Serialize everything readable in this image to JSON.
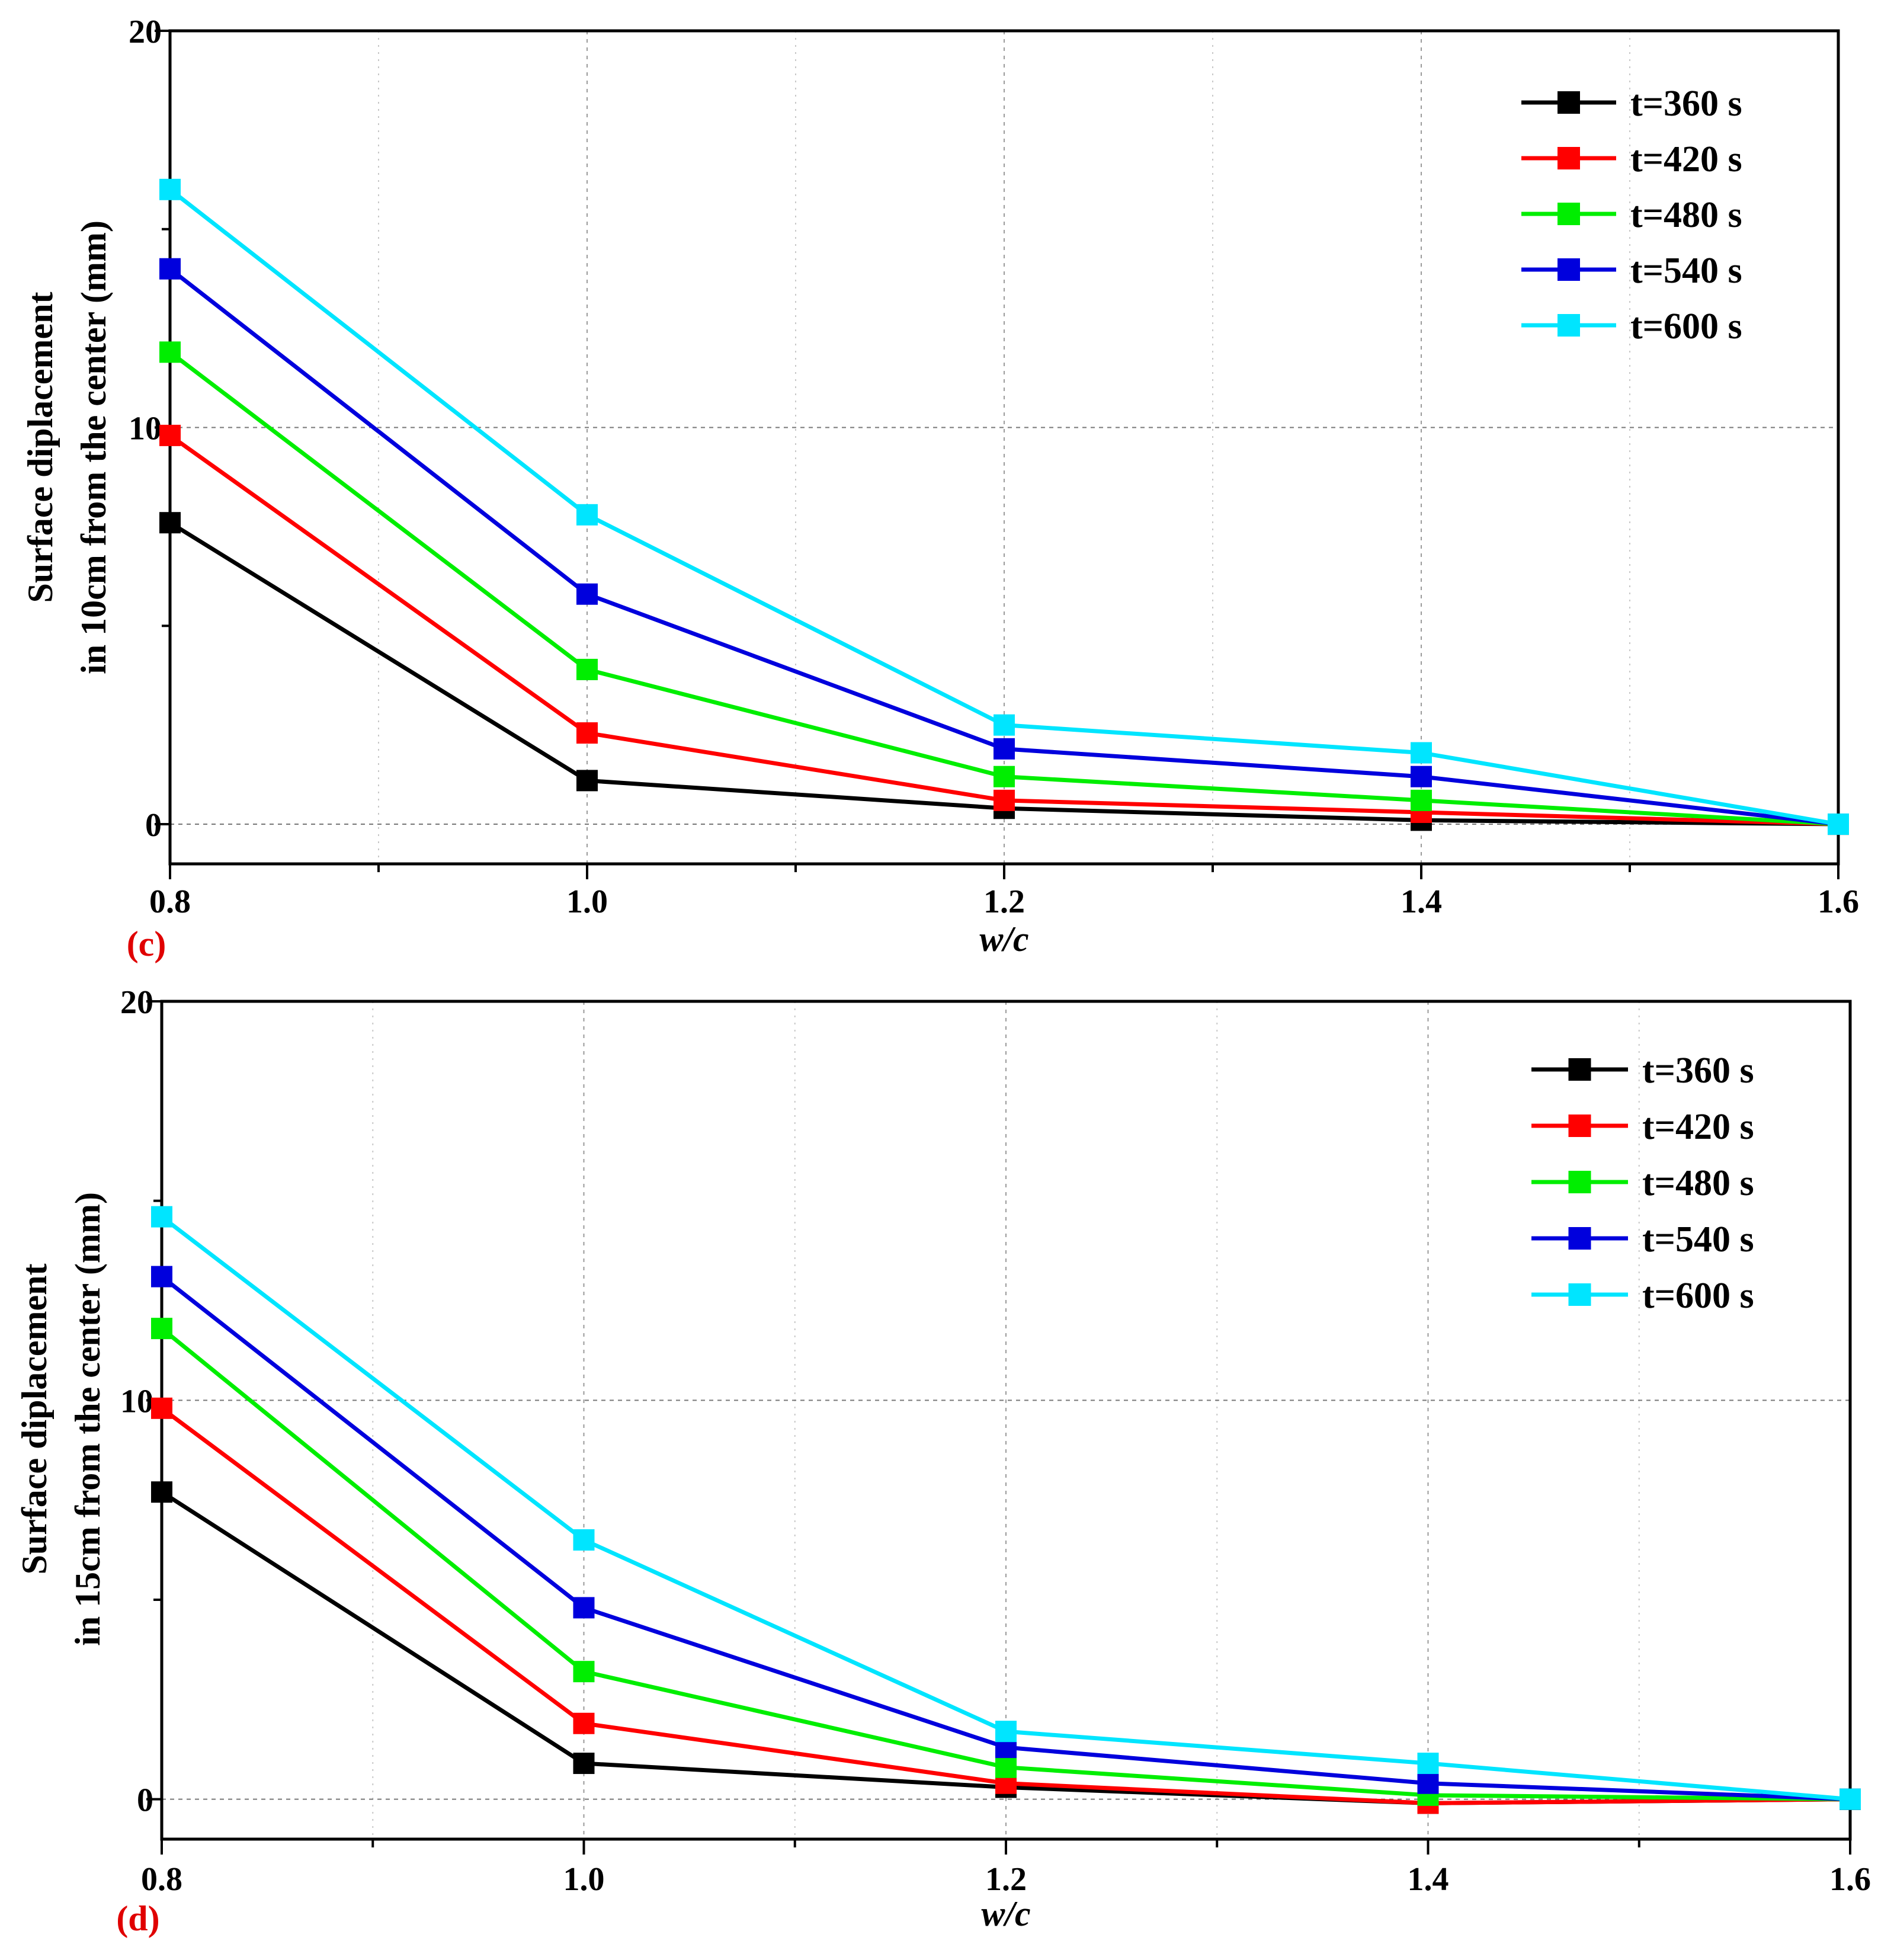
{
  "chart_data": [
    {
      "type": "line",
      "panel_label": "(c)",
      "x": [
        0.8,
        1.0,
        1.2,
        1.4,
        1.6
      ],
      "x_tick_labels": [
        "0.8",
        "1.0",
        "1.2",
        "1.4",
        "1.6"
      ],
      "y_tick_labels": [
        "0",
        "10",
        "20"
      ],
      "xlabel": "w/c",
      "ylabel_lines": [
        "Surface diplacement",
        "in 10cm from the center (mm)"
      ],
      "xlim": [
        0.8,
        1.6
      ],
      "ylim": [
        -1,
        20
      ],
      "grid": true,
      "legend_position": "top-right",
      "series": [
        {
          "name": "t=360 s",
          "color": "#000000",
          "values": [
            7.6,
            1.1,
            0.4,
            0.1,
            0.0
          ]
        },
        {
          "name": "t=420 s",
          "color": "#ff0000",
          "values": [
            9.8,
            2.3,
            0.6,
            0.3,
            0.0
          ]
        },
        {
          "name": "t=480 s",
          "color": "#00ee00",
          "values": [
            11.9,
            3.9,
            1.2,
            0.6,
            0.0
          ]
        },
        {
          "name": "t=540 s",
          "color": "#0000dd",
          "values": [
            14.0,
            5.8,
            1.9,
            1.2,
            0.0
          ]
        },
        {
          "name": "t=600 s",
          "color": "#00e5ff",
          "values": [
            16.0,
            7.8,
            2.5,
            1.8,
            0.0
          ]
        }
      ]
    },
    {
      "type": "line",
      "panel_label": "(d)",
      "x": [
        0.8,
        1.0,
        1.2,
        1.4,
        1.6
      ],
      "x_tick_labels": [
        "0.8",
        "1.0",
        "1.2",
        "1.4",
        "1.6"
      ],
      "y_tick_labels": [
        "0",
        "10",
        "20"
      ],
      "xlabel": "w/c",
      "ylabel_lines": [
        "Surface diplacement",
        "in 15cm from the center (mm)"
      ],
      "xlim": [
        0.8,
        1.6
      ],
      "ylim": [
        -1,
        20
      ],
      "grid": true,
      "legend_position": "top-right",
      "series": [
        {
          "name": "t=360 s",
          "color": "#000000",
          "values": [
            7.7,
            0.9,
            0.3,
            -0.1,
            0.0
          ]
        },
        {
          "name": "t=420 s",
          "color": "#ff0000",
          "values": [
            9.8,
            1.9,
            0.4,
            -0.1,
            0.0
          ]
        },
        {
          "name": "t=480 s",
          "color": "#00ee00",
          "values": [
            11.8,
            3.2,
            0.8,
            0.1,
            0.0
          ]
        },
        {
          "name": "t=540 s",
          "color": "#0000dd",
          "values": [
            13.1,
            4.8,
            1.3,
            0.4,
            0.0
          ]
        },
        {
          "name": "t=600 s",
          "color": "#00e5ff",
          "values": [
            14.6,
            6.5,
            1.7,
            0.9,
            0.0
          ]
        }
      ]
    }
  ]
}
